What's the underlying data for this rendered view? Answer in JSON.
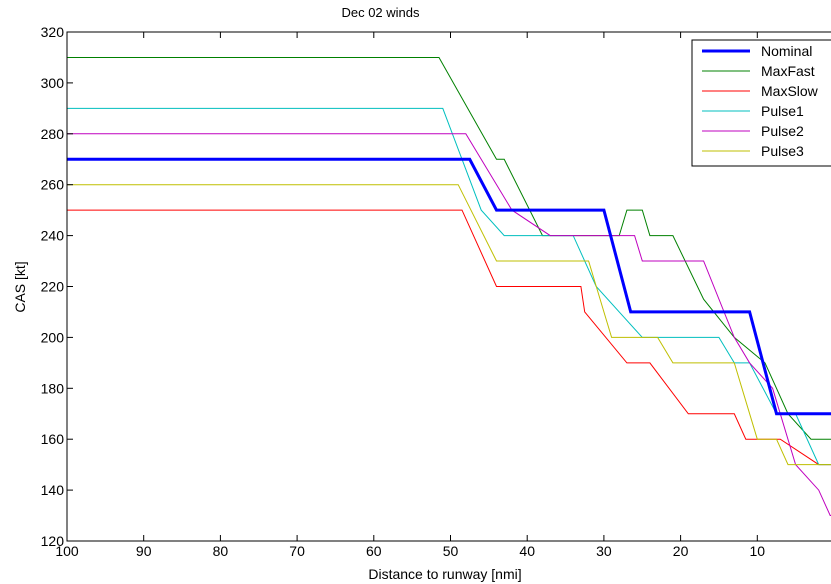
{
  "chart_data": {
    "type": "line",
    "title": "Dec 02 winds",
    "xlabel": "Distance to runway [nmi]",
    "ylabel": "CAS [kt]",
    "xlim": [
      100,
      0
    ],
    "ylim": [
      120,
      320
    ],
    "x_reversed": true,
    "xticks": [
      100,
      90,
      80,
      70,
      60,
      50,
      40,
      30,
      20,
      10
    ],
    "yticks": [
      120,
      140,
      160,
      180,
      200,
      220,
      240,
      260,
      280,
      300,
      320
    ],
    "grid": false,
    "legend_position": "top-right",
    "series": [
      {
        "name": "Nominal",
        "color": "#0000ff",
        "emphasis": true,
        "points": [
          [
            100,
            270
          ],
          [
            47.5,
            270
          ],
          [
            44,
            250
          ],
          [
            30,
            250
          ],
          [
            26.5,
            210
          ],
          [
            11,
            210
          ],
          [
            7.5,
            170
          ],
          [
            0,
            170
          ]
        ]
      },
      {
        "name": "MaxFast",
        "color": "#008000",
        "points": [
          [
            100,
            310
          ],
          [
            51.5,
            310
          ],
          [
            44,
            270
          ],
          [
            43,
            270
          ],
          [
            38,
            240
          ],
          [
            28,
            240
          ],
          [
            27,
            250
          ],
          [
            25,
            250
          ],
          [
            24,
            240
          ],
          [
            21,
            240
          ],
          [
            17,
            215
          ],
          [
            13,
            200
          ],
          [
            9,
            190
          ],
          [
            6,
            170
          ],
          [
            3,
            160
          ],
          [
            0,
            160
          ]
        ]
      },
      {
        "name": "MaxSlow",
        "color": "#ff0000",
        "points": [
          [
            100,
            250
          ],
          [
            48.5,
            250
          ],
          [
            44,
            220
          ],
          [
            33,
            220
          ],
          [
            32.5,
            210
          ],
          [
            27,
            190
          ],
          [
            24,
            190
          ],
          [
            19,
            170
          ],
          [
            13,
            170
          ],
          [
            11.5,
            160
          ],
          [
            7,
            160
          ],
          [
            2,
            150
          ],
          [
            0,
            150
          ]
        ]
      },
      {
        "name": "Pulse1",
        "color": "#00bfbf",
        "points": [
          [
            100,
            290
          ],
          [
            51,
            290
          ],
          [
            46,
            250
          ],
          [
            43,
            240
          ],
          [
            34,
            240
          ],
          [
            31,
            220
          ],
          [
            28,
            210
          ],
          [
            25,
            200
          ],
          [
            15,
            200
          ],
          [
            13,
            190
          ],
          [
            11,
            190
          ],
          [
            7.5,
            170
          ],
          [
            5,
            170
          ],
          [
            2,
            150
          ],
          [
            0,
            150
          ]
        ]
      },
      {
        "name": "Pulse2",
        "color": "#bf00bf",
        "points": [
          [
            100,
            280
          ],
          [
            48,
            280
          ],
          [
            42,
            250
          ],
          [
            37,
            240
          ],
          [
            26,
            240
          ],
          [
            25,
            230
          ],
          [
            17,
            230
          ],
          [
            13,
            200
          ],
          [
            11,
            190
          ],
          [
            8,
            180
          ],
          [
            5,
            150
          ],
          [
            2,
            140
          ],
          [
            0.5,
            130
          ],
          [
            0,
            130
          ]
        ]
      },
      {
        "name": "Pulse3",
        "color": "#bfbf00",
        "points": [
          [
            100,
            260
          ],
          [
            49,
            260
          ],
          [
            44,
            230
          ],
          [
            32,
            230
          ],
          [
            30,
            210
          ],
          [
            29,
            200
          ],
          [
            23,
            200
          ],
          [
            21,
            190
          ],
          [
            13,
            190
          ],
          [
            10,
            160
          ],
          [
            7.5,
            160
          ],
          [
            6,
            150
          ],
          [
            0,
            150
          ]
        ]
      }
    ]
  }
}
